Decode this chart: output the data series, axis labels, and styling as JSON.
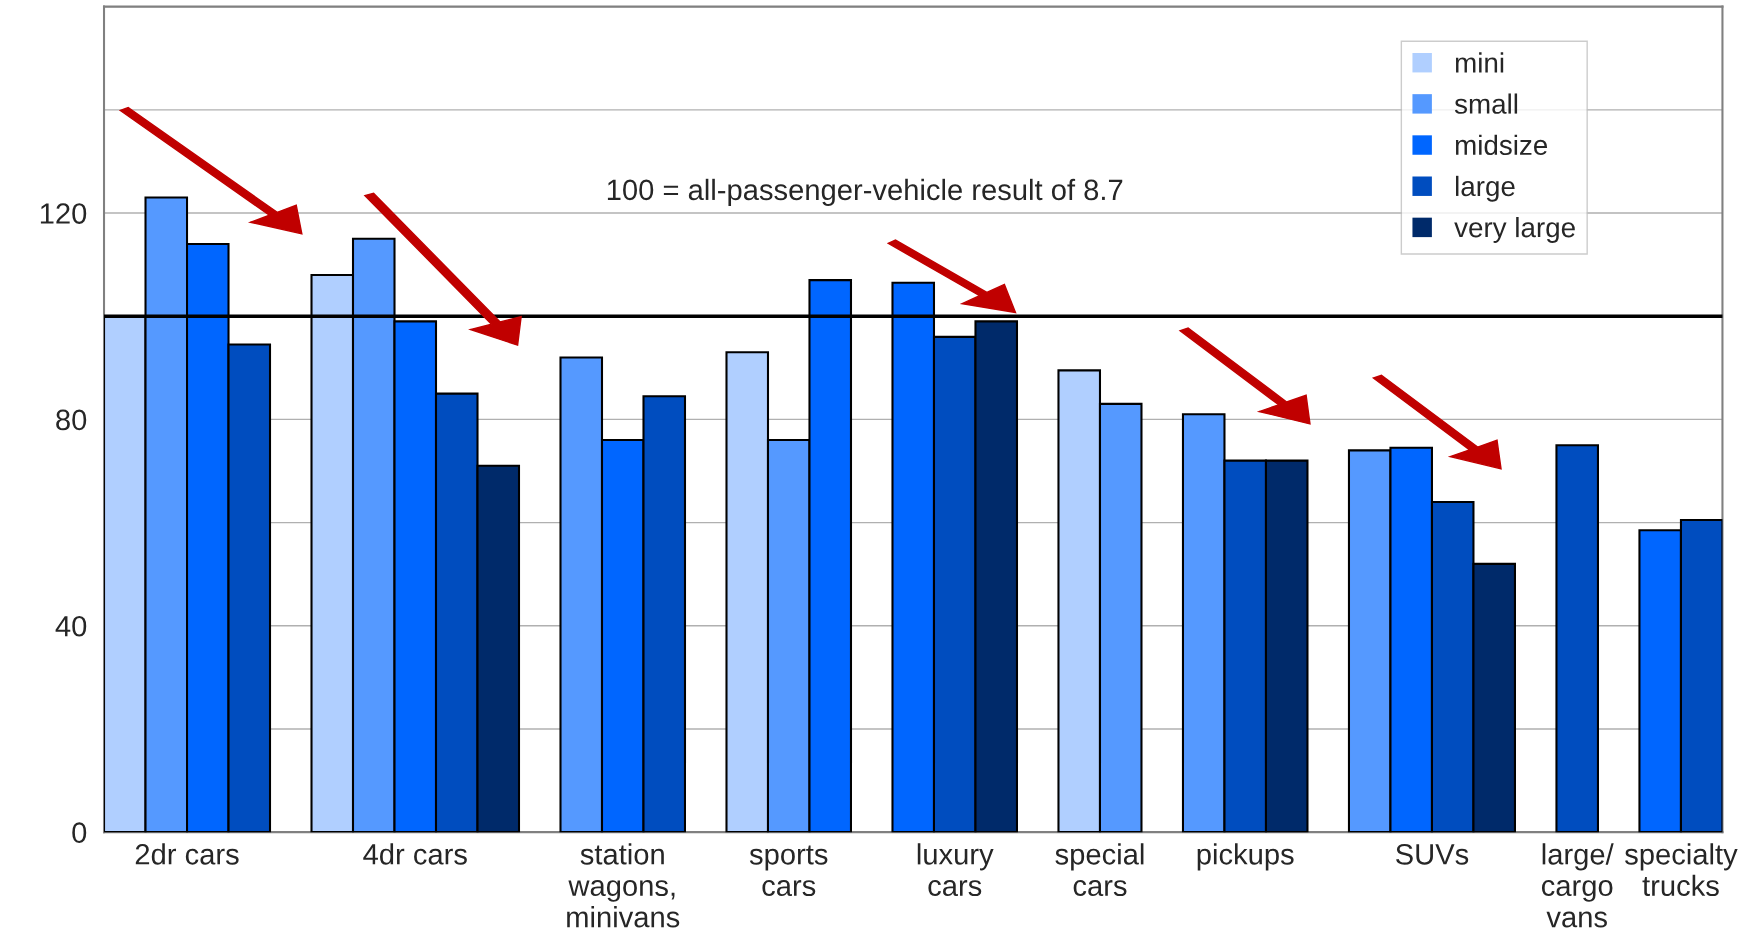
{
  "chart_data": {
    "type": "bar",
    "categories": [
      "2dr cars",
      "4dr cars",
      "station\nwagons,\nminivans",
      "sports\ncars",
      "luxury\ncars",
      "special\ncars",
      "pickups",
      "SUVs",
      "large/\ncargo\nvans",
      "specialty\ntrucks"
    ],
    "series": [
      {
        "name": "mini",
        "color": "#b0cfff",
        "values": [
          100,
          108,
          null,
          93,
          null,
          89.5,
          null,
          null,
          null,
          null
        ]
      },
      {
        "name": "small",
        "color": "#5599ff",
        "values": [
          123,
          115,
          92,
          76,
          null,
          83,
          81,
          74,
          null,
          null
        ]
      },
      {
        "name": "midsize",
        "color": "#0066ff",
        "values": [
          114,
          99,
          76,
          107,
          106.5,
          null,
          null,
          74.5,
          null,
          58.5
        ]
      },
      {
        "name": "large",
        "color": "#004dbf",
        "values": [
          94.5,
          85,
          84.5,
          null,
          96,
          null,
          72,
          64,
          75,
          60.5
        ]
      },
      {
        "name": "very large",
        "color": "#002a6a",
        "values": [
          null,
          71,
          null,
          null,
          99,
          null,
          72,
          52,
          null,
          null
        ]
      }
    ],
    "ylim": [
      0,
      160
    ],
    "yticks": [
      0,
      {
        "value": 20,
        "label": null
      },
      40,
      {
        "value": 60,
        "label": null
      },
      80,
      {
        "value": 100,
        "label": null
      },
      120,
      {
        "value": 140,
        "label": null
      },
      {
        "value": 160,
        "label": null
      }
    ],
    "ref_lines": [
      {
        "axis": "y",
        "value": 100,
        "color": "#000000",
        "line_style": "solid"
      }
    ],
    "annotations": [
      "100 = all-passenger-vehicle result of 8.7"
    ],
    "grid": "y",
    "legend": "top right"
  }
}
